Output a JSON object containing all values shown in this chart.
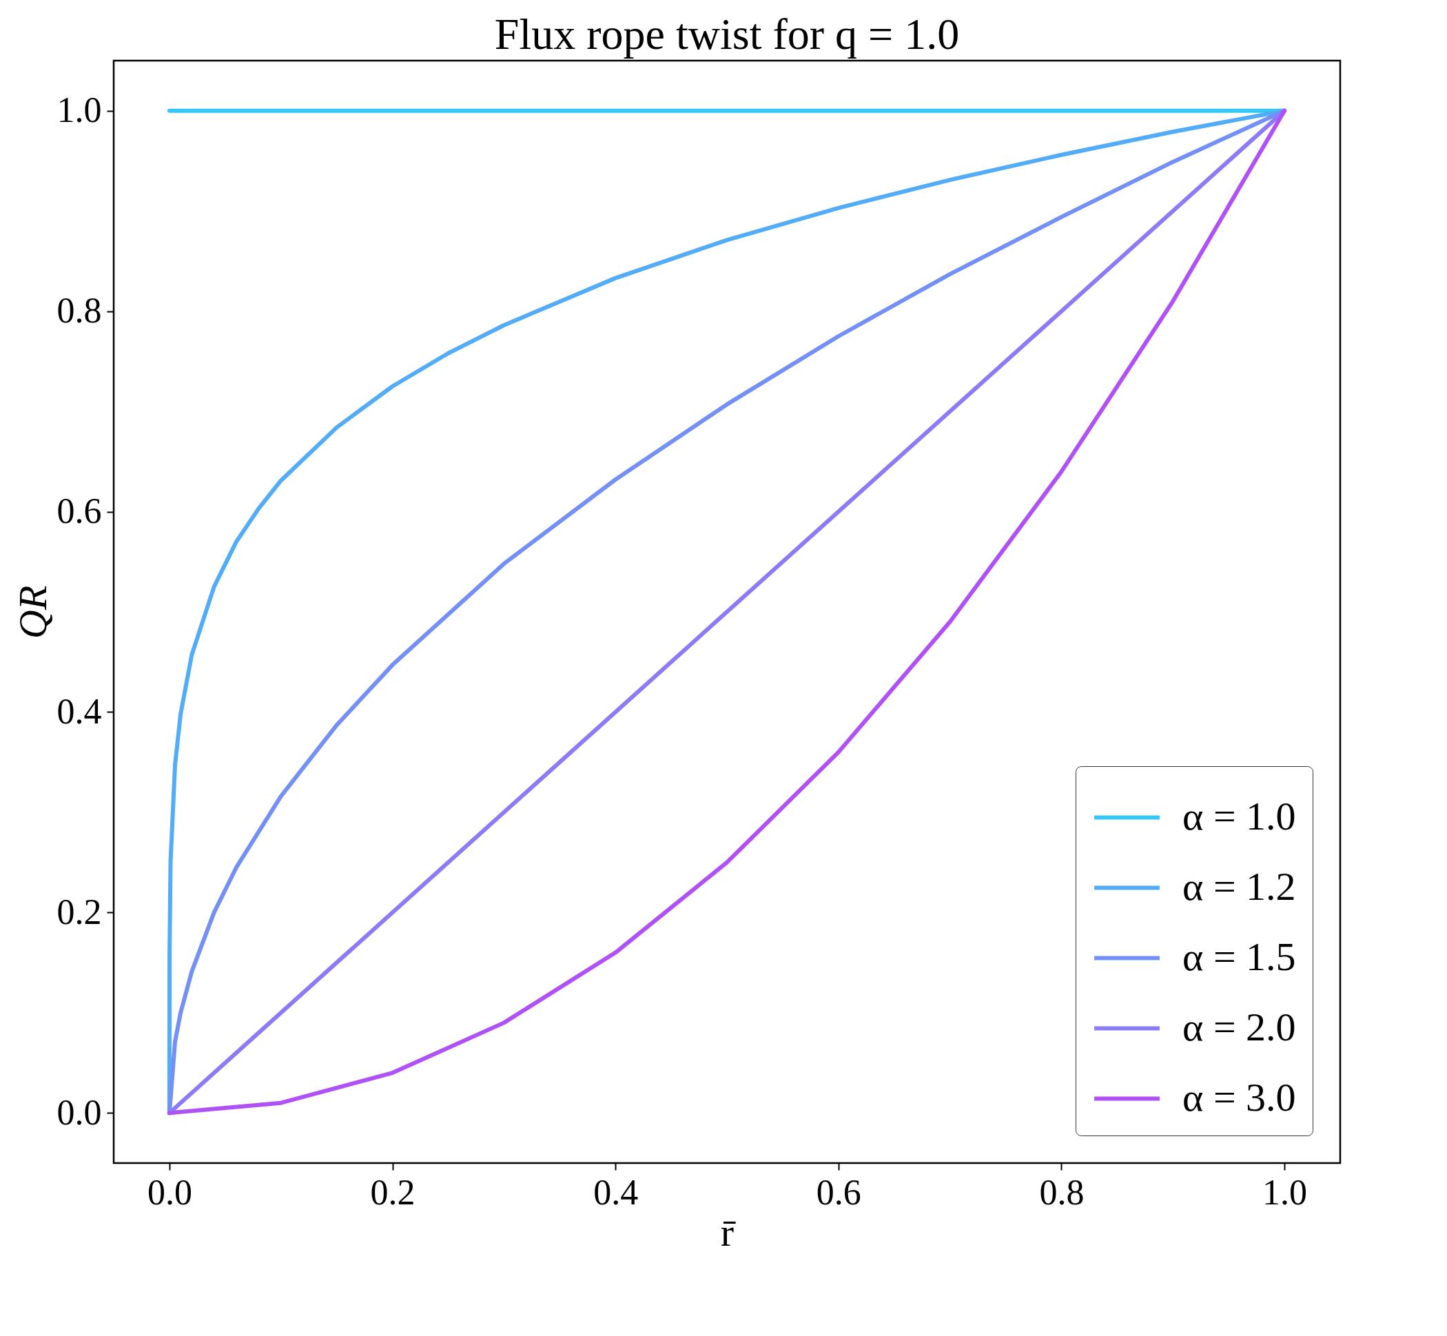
{
  "chart_data": {
    "type": "line",
    "title": "Flux rope twist for q = 1.0",
    "xlabel": "r̄",
    "ylabel": "QR",
    "series": [
      {
        "name": "α = 1.0",
        "color": "#36c8f7",
        "x": [
          0,
          1
        ],
        "values": [
          1,
          1
        ]
      },
      {
        "name": "α = 1.2",
        "color": "#52acf7",
        "x": [
          0,
          0.0001,
          0.001,
          0.005,
          0.01,
          0.02,
          0.04,
          0.06,
          0.08,
          0.1,
          0.15,
          0.2,
          0.25,
          0.3,
          0.4,
          0.5,
          0.6,
          0.7,
          0.8,
          0.9,
          1.0
        ],
        "values": [
          0,
          0.158,
          0.251,
          0.347,
          0.398,
          0.457,
          0.525,
          0.57,
          0.603,
          0.631,
          0.684,
          0.725,
          0.758,
          0.786,
          0.833,
          0.871,
          0.903,
          0.931,
          0.956,
          0.979,
          1
        ]
      },
      {
        "name": "α = 1.5",
        "color": "#7490f7",
        "x": [
          0,
          0.005,
          0.01,
          0.02,
          0.04,
          0.06,
          0.1,
          0.15,
          0.2,
          0.3,
          0.4,
          0.5,
          0.6,
          0.7,
          0.8,
          0.9,
          1.0
        ],
        "values": [
          0,
          0.071,
          0.1,
          0.141,
          0.2,
          0.245,
          0.316,
          0.387,
          0.447,
          0.548,
          0.632,
          0.707,
          0.775,
          0.837,
          0.894,
          0.949,
          1
        ]
      },
      {
        "name": "α = 2.0",
        "color": "#8b7bf7",
        "x": [
          0,
          1
        ],
        "values": [
          0,
          1
        ]
      },
      {
        "name": "α = 3.0",
        "color": "#b051f7",
        "x": [
          0,
          0.1,
          0.2,
          0.3,
          0.4,
          0.5,
          0.6,
          0.7,
          0.8,
          0.9,
          1.0
        ],
        "values": [
          0,
          0.01,
          0.04,
          0.09,
          0.16,
          0.25,
          0.36,
          0.49,
          0.64,
          0.81,
          1
        ]
      }
    ],
    "xlim": [
      -0.05,
      1.05
    ],
    "ylim": [
      -0.05,
      1.05
    ],
    "xticks": [
      {
        "value": 0,
        "label": "0.0"
      },
      {
        "value": 0.2,
        "label": "0.2"
      },
      {
        "value": 0.4,
        "label": "0.4"
      },
      {
        "value": 0.6,
        "label": "0.6"
      },
      {
        "value": 0.8,
        "label": "0.8"
      },
      {
        "value": 1,
        "label": "1.0"
      }
    ],
    "yticks": [
      {
        "value": 0,
        "label": "0.0"
      },
      {
        "value": 0.2,
        "label": "0.2"
      },
      {
        "value": 0.4,
        "label": "0.4"
      },
      {
        "value": 0.6,
        "label": "0.6"
      },
      {
        "value": 0.8,
        "label": "0.8"
      },
      {
        "value": 1,
        "label": "1.0"
      }
    ],
    "grid": false,
    "legend": "bottom right",
    "line_style": "solid",
    "marker": "none"
  }
}
